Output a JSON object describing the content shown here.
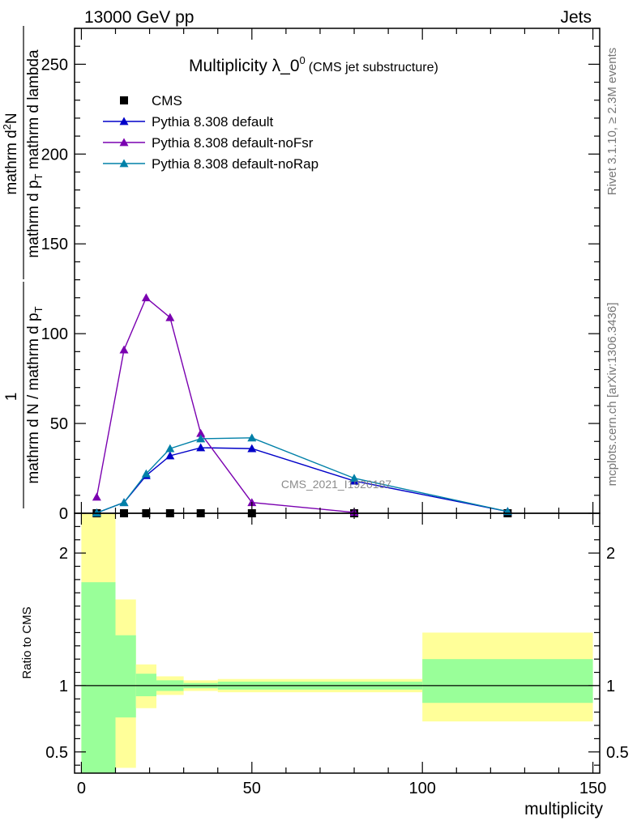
{
  "header": {
    "left": "13000 GeV pp",
    "right": "Jets"
  },
  "side_labels": {
    "rivet": "Rivet 3.1.10, ≥ 2.3M events",
    "mcplots": "mcplots.cern.ch [arXiv:1306.3436]"
  },
  "watermark": "CMS_2021_I1920187",
  "chart_data": [
    {
      "type": "line",
      "panel": "main",
      "title": "Multiplicity λ_0",
      "title_sup": "0",
      "subtitle": "(CMS jet substructure)",
      "ylabel_num": "mathrm d²N",
      "ylabel_den": "mathrm d p_T mathrm d lambda",
      "ylabel_prefix": "1",
      "ylabel_prefix_den": "mathrm d N / mathrm d p_T",
      "xlim": [
        -2,
        152
      ],
      "ylim": [
        0,
        270
      ],
      "yticks": [
        0,
        50,
        100,
        150,
        200,
        250
      ],
      "legend_position": "top-left",
      "series": [
        {
          "name": "CMS",
          "marker": "square",
          "color": "#000000",
          "x": [
            4.5,
            12.5,
            19,
            26,
            35,
            50,
            80,
            125
          ],
          "y": [
            0,
            0,
            0,
            0,
            0,
            0,
            0,
            0
          ]
        },
        {
          "name": "Pythia 8.308 default",
          "marker": "triangle",
          "color": "#0000c8",
          "x": [
            4.5,
            12.5,
            19,
            26,
            35,
            50,
            80,
            125
          ],
          "y": [
            0.2,
            6,
            21,
            32,
            36.5,
            36,
            18,
            1
          ]
        },
        {
          "name": "Pythia 8.308 default-noFsr",
          "marker": "triangle",
          "color": "#7a00b0",
          "x": [
            4.5,
            12.5,
            19,
            26,
            35,
            50,
            80
          ],
          "y": [
            9,
            91,
            120,
            109,
            44.5,
            6,
            0.5
          ]
        },
        {
          "name": "Pythia 8.308 default-noRap",
          "marker": "triangle",
          "color": "#0080a8",
          "x": [
            4.5,
            12.5,
            19,
            26,
            35,
            50,
            80,
            125
          ],
          "y": [
            0.2,
            6,
            22,
            36,
            41.5,
            42,
            19.5,
            1
          ]
        }
      ]
    },
    {
      "type": "area",
      "panel": "ratio",
      "ylabel": "Ratio to CMS",
      "xlabel": "multiplicity",
      "xlim": [
        -2,
        152
      ],
      "ylim": [
        0.34,
        2.3
      ],
      "yticks": [
        0.5,
        1,
        2
      ],
      "xticks": [
        0,
        50,
        100,
        150
      ],
      "bands": [
        {
          "x": [
            0,
            10
          ],
          "yellow": [
            0.34,
            2.3
          ],
          "green": [
            0.34,
            1.78
          ]
        },
        {
          "x": [
            10,
            16
          ],
          "yellow": [
            0.38,
            1.65
          ],
          "green": [
            0.76,
            1.38
          ]
        },
        {
          "x": [
            16,
            22
          ],
          "yellow": [
            0.83,
            1.16
          ],
          "green": [
            0.92,
            1.09
          ]
        },
        {
          "x": [
            22,
            30
          ],
          "yellow": [
            0.93,
            1.07
          ],
          "green": [
            0.96,
            1.04
          ]
        },
        {
          "x": [
            30,
            40
          ],
          "yellow": [
            0.96,
            1.04
          ],
          "green": [
            0.98,
            1.02
          ]
        },
        {
          "x": [
            40,
            100
          ],
          "yellow": [
            0.95,
            1.05
          ],
          "green": [
            0.97,
            1.03
          ]
        },
        {
          "x": [
            100,
            150
          ],
          "yellow": [
            0.73,
            1.4
          ],
          "green": [
            0.87,
            1.2
          ]
        }
      ]
    }
  ]
}
